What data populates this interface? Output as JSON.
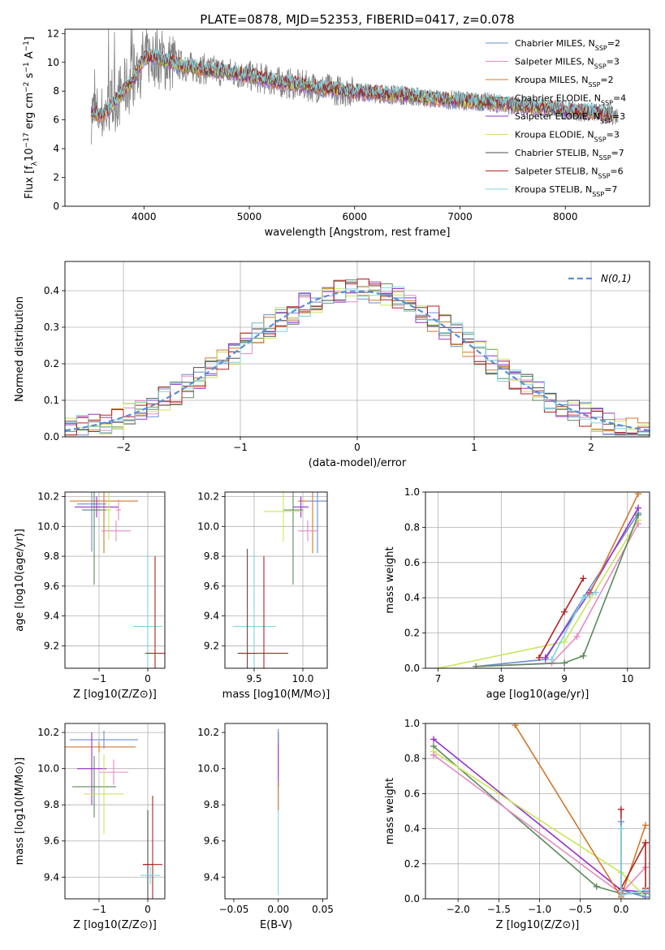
{
  "figure_title": "PLATE=0878, MJD=52353, FIBERID=0417, z=0.078",
  "chart_data": [
    {
      "id": "spectrum",
      "type": "line",
      "title": "PLATE=0878, MJD=52353, FIBERID=0417, z=0.078",
      "xlabel": "wavelength [Angstrom, rest frame]",
      "ylabel": "Flux [f_λ 10^-17 erg cm^-2 s^-1 A^-1]",
      "xlim": [
        3250,
        8800
      ],
      "ylim": [
        0,
        12.3
      ],
      "xticks": [
        4000,
        5000,
        6000,
        7000,
        8000
      ],
      "yticks": [
        0,
        2,
        4,
        6,
        8,
        10,
        12
      ],
      "grid": false,
      "legend_position": "top-right",
      "data_color": "#808080",
      "series": [
        {
          "name": "Chabrier MILES, N_SSP=2",
          "color": "#6a8dd6"
        },
        {
          "name": "Salpeter MILES, N_SSP=3",
          "color": "#e78ac3"
        },
        {
          "name": "Kroupa MILES, N_SSP=2",
          "color": "#d2782c"
        },
        {
          "name": "Chabrier ELODIE, N_SSP=4",
          "color": "#5c8a5c"
        },
        {
          "name": "Salpeter ELODIE, N_SSP=3",
          "color": "#9932cc"
        },
        {
          "name": "Kroupa ELODIE, N_SSP=3",
          "color": "#c8e65a"
        },
        {
          "name": "Chabrier STELIB, N_SSP=7",
          "color": "#4d4d4d"
        },
        {
          "name": "Salpeter STELIB, N_SSP=6",
          "color": "#b22222"
        },
        {
          "name": "Kroupa STELIB, N_SSP=7",
          "color": "#7fd3de"
        }
      ],
      "continuum": {
        "x": [
          3500,
          3600,
          3700,
          3800,
          3900,
          4000,
          4100,
          4200,
          4300,
          4400,
          4500,
          4700,
          4900,
          5100,
          5300,
          5500,
          5700,
          5900,
          6100,
          6300,
          6500,
          6700,
          6900,
          7100,
          7300,
          7500,
          7700,
          7900,
          8100,
          8300,
          8500
        ],
        "y": [
          6.5,
          6.3,
          7.0,
          8.0,
          8.8,
          10.3,
          10.4,
          10.1,
          9.9,
          9.7,
          9.6,
          9.4,
          9.2,
          8.9,
          8.6,
          8.4,
          8.2,
          8.0,
          7.9,
          7.8,
          7.7,
          7.5,
          7.4,
          7.3,
          7.2,
          7.0,
          6.9,
          6.8,
          6.6,
          6.5,
          6.3
        ]
      }
    },
    {
      "id": "residuals",
      "type": "bar",
      "xlabel": "(data-model)/error",
      "ylabel": "Normed distribution",
      "xlim": [
        -2.5,
        2.5
      ],
      "ylim": [
        0,
        0.48
      ],
      "xticks": [
        -2,
        -1,
        0,
        1,
        2
      ],
      "yticks": [
        0.0,
        0.1,
        0.2,
        0.3,
        0.4
      ],
      "grid": true,
      "legend_position": "top-right",
      "normal_curve": {
        "name": "N(0,1)",
        "color": "#5b8fd6",
        "mean": 0,
        "sigma": 1
      }
    },
    {
      "id": "age_vs_Z",
      "type": "scatter",
      "xlabel": "Z [log10(Z/Z⊙)]",
      "ylabel": "age [log10(age/yr)]",
      "xlim": [
        -1.7,
        0.35
      ],
      "ylim": [
        9.05,
        10.23
      ],
      "xticks": [
        -1,
        0
      ],
      "yticks": [
        9.2,
        9.4,
        9.6,
        9.8,
        10.0,
        10.2
      ],
      "grid": true,
      "points": [
        {
          "x": -0.9,
          "y": 10.17,
          "x_err": 0.7,
          "y_err": 0.35,
          "color": "#d2782c"
        },
        {
          "x": -1.15,
          "y": 10.15,
          "x_err": 0.3,
          "y_err": 0.32,
          "color": "#6a8dd6"
        },
        {
          "x": -1.05,
          "y": 10.13,
          "x_err": 0.45,
          "y_err": 0.07,
          "color": "#9932cc"
        },
        {
          "x": -1.1,
          "y": 10.11,
          "x_err": 0.25,
          "y_err": 0.5,
          "color": "#5c8a5c"
        },
        {
          "x": -0.6,
          "y": 10.11,
          "x_err": 0.05,
          "y_err": 0.07,
          "color": "#e78ac3"
        },
        {
          "x": -0.8,
          "y": 10.11,
          "x_err": 0.05,
          "y_err": 0.2,
          "color": "#c8e65a"
        },
        {
          "x": -0.65,
          "y": 9.97,
          "x_err": 0.3,
          "y_err": 0.07,
          "color": "#e78ac3"
        },
        {
          "x": 0.0,
          "y": 9.33,
          "x_err": 0.3,
          "y_err": 0.5,
          "color": "#7fd3de"
        },
        {
          "x": 0.15,
          "y": 9.15,
          "x_err": 0.2,
          "y_err": 0.65,
          "color": "#b22222"
        }
      ]
    },
    {
      "id": "age_vs_mass",
      "type": "scatter",
      "xlabel": "mass [log10(M/M⊙)]",
      "ylabel": "",
      "xlim": [
        9.2,
        10.25
      ],
      "ylim": [
        9.05,
        10.23
      ],
      "xticks": [
        9.5,
        10.0
      ],
      "yticks": [
        9.2,
        9.4,
        9.6,
        9.8,
        10.0,
        10.2
      ],
      "grid": true,
      "points": [
        {
          "x": 10.1,
          "y": 10.17,
          "x_err": 0.15,
          "y_err": 0.35,
          "color": "#d2782c"
        },
        {
          "x": 10.15,
          "y": 10.17,
          "x_err": 0.1,
          "y_err": 0.35,
          "color": "#6a8dd6"
        },
        {
          "x": 9.98,
          "y": 10.13,
          "x_err": 0.08,
          "y_err": 0.07,
          "color": "#9932cc"
        },
        {
          "x": 9.9,
          "y": 10.11,
          "x_err": 0.1,
          "y_err": 0.5,
          "color": "#5c8a5c"
        },
        {
          "x": 9.8,
          "y": 10.1,
          "x_err": 0.2,
          "y_err": 0.2,
          "color": "#c8e65a"
        },
        {
          "x": 10.05,
          "y": 9.97,
          "x_err": 0.1,
          "y_err": 0.07,
          "color": "#e78ac3"
        },
        {
          "x": 9.5,
          "y": 9.33,
          "x_err": 0.22,
          "y_err": 0.5,
          "color": "#7fd3de"
        },
        {
          "x": 9.43,
          "y": 9.15,
          "x_err": 0.1,
          "y_err": 0.7,
          "color": "#4d4d4d"
        },
        {
          "x": 9.6,
          "y": 9.15,
          "x_err": 0.25,
          "y_err": 0.65,
          "color": "#b22222"
        }
      ]
    },
    {
      "id": "massweight_vs_age",
      "type": "line",
      "xlabel": "age [log10(age/yr)]",
      "ylabel": "mass weight",
      "xlim": [
        6.8,
        10.35
      ],
      "ylim": [
        0,
        1.0
      ],
      "xticks": [
        7,
        8,
        9,
        10
      ],
      "yticks": [
        0.0,
        0.2,
        0.4,
        0.6,
        0.8,
        1.0
      ],
      "grid": true,
      "series": [
        {
          "color": "#c8e65a",
          "x": [
            7.0,
            9.0,
            10.17
          ],
          "y": [
            0.0,
            0.15,
            0.84
          ]
        },
        {
          "color": "#6a8dd6",
          "x": [
            7.6,
            8.7,
            9.3,
            10.17
          ],
          "y": [
            0.01,
            0.05,
            0.4,
            0.88
          ]
        },
        {
          "color": "#e78ac3",
          "x": [
            7.6,
            8.8,
            9.2,
            10.17
          ],
          "y": [
            0.01,
            0.03,
            0.18,
            0.82
          ]
        },
        {
          "color": "#5c8a5c",
          "x": [
            7.6,
            9.0,
            9.3,
            10.17
          ],
          "y": [
            0.01,
            0.03,
            0.07,
            0.87
          ]
        },
        {
          "color": "#9932cc",
          "x": [
            8.7,
            9.4,
            10.17
          ],
          "y": [
            0.06,
            0.43,
            0.91
          ]
        },
        {
          "color": "#b22222",
          "x": [
            8.6,
            9.0,
            9.3
          ],
          "y": [
            0.06,
            0.32,
            0.51
          ]
        },
        {
          "color": "#d2782c",
          "x": [
            9.4,
            10.17
          ],
          "y": [
            0.42,
            0.99
          ]
        },
        {
          "color": "#7fd3de",
          "x": [
            8.8,
            9.3,
            9.5
          ],
          "y": [
            0.05,
            0.4,
            0.43
          ]
        }
      ]
    },
    {
      "id": "mass_vs_Z",
      "type": "scatter",
      "xlabel": "Z [log10(Z/Z⊙)]",
      "ylabel": "mass [log10(M/M⊙)]",
      "xlim": [
        -1.7,
        0.35
      ],
      "ylim": [
        9.28,
        10.25
      ],
      "xticks": [
        -1,
        0
      ],
      "yticks": [
        9.4,
        9.6,
        9.8,
        10.0,
        10.2
      ],
      "grid": true,
      "points": [
        {
          "x": -0.9,
          "y": 10.16,
          "x_err": 0.7,
          "y_err": 0.05,
          "color": "#6a8dd6"
        },
        {
          "x": -1.0,
          "y": 10.12,
          "x_err": 0.75,
          "y_err": 0.03,
          "color": "#d2782c"
        },
        {
          "x": -1.15,
          "y": 10.0,
          "x_err": 0.3,
          "y_err": 0.2,
          "color": "#9932cc"
        },
        {
          "x": -0.7,
          "y": 9.98,
          "x_err": 0.3,
          "y_err": 0.07,
          "color": "#e78ac3"
        },
        {
          "x": -1.1,
          "y": 9.9,
          "x_err": 0.45,
          "y_err": 0.17,
          "color": "#5c8a5c"
        },
        {
          "x": -0.9,
          "y": 9.86,
          "x_err": 0.4,
          "y_err": 0.22,
          "color": "#c8e65a"
        },
        {
          "x": 0.0,
          "y": 9.47,
          "x_err": 0.1,
          "y_err": 0.3,
          "color": "#4d4d4d"
        },
        {
          "x": 0.1,
          "y": 9.47,
          "x_err": 0.2,
          "y_err": 0.38,
          "color": "#b22222"
        },
        {
          "x": 0.05,
          "y": 9.41,
          "x_err": 0.2,
          "y_err": 0.05,
          "color": "#7fd3de"
        }
      ]
    },
    {
      "id": "mass_vs_EBV",
      "type": "scatter",
      "xlabel": "E(B-V)",
      "ylabel": "",
      "xlim": [
        -0.06,
        0.055
      ],
      "ylim": [
        9.28,
        10.25
      ],
      "xticks": [
        -0.05,
        0.0,
        0.05
      ],
      "xtick_labels": [
        "−0.05",
        "0.00",
        "0.05"
      ],
      "yticks": [
        9.4,
        9.6,
        9.8,
        10.0,
        10.2
      ],
      "grid": false,
      "points": [
        {
          "x": 0.0,
          "y": 9.75,
          "x_err": 0.0,
          "y_err": 0.45,
          "color": "#7fd3de"
        },
        {
          "x": 0.0,
          "y": 10.05,
          "x_err": 0.0,
          "y_err": 0.15,
          "color": "#9932cc"
        },
        {
          "x": 0.0,
          "y": 9.85,
          "x_err": 0.0,
          "y_err": 0.08,
          "color": "#d2782c"
        },
        {
          "x": 0.0,
          "y": 10.18,
          "x_err": 0.0,
          "y_err": 0.04,
          "color": "#6a8dd6"
        }
      ]
    },
    {
      "id": "massweight_vs_Z",
      "type": "line",
      "xlabel": "Z [log10(Z/Z⊙)]",
      "ylabel": "mass weight",
      "xlim": [
        -2.4,
        0.35
      ],
      "ylim": [
        0,
        1.0
      ],
      "xticks": [
        -2.0,
        -1.5,
        -1.0,
        -0.5,
        0.0
      ],
      "yticks": [
        0.0,
        0.2,
        0.4,
        0.6,
        0.8,
        1.0
      ],
      "grid": true,
      "series": [
        {
          "color": "#9932cc",
          "x": [
            -2.3,
            0.0,
            0.3
          ],
          "y": [
            0.91,
            0.05,
            0.04
          ]
        },
        {
          "color": "#5c8a5c",
          "x": [
            -2.3,
            -0.3,
            0.0,
            0.3
          ],
          "y": [
            0.87,
            0.07,
            0.03,
            0.03
          ]
        },
        {
          "color": "#c8e65a",
          "x": [
            -2.3,
            0.0,
            0.3
          ],
          "y": [
            0.84,
            0.15,
            0.01
          ]
        },
        {
          "color": "#e78ac3",
          "x": [
            -2.3,
            0.0,
            0.3
          ],
          "y": [
            0.82,
            0.03,
            0.18
          ]
        },
        {
          "color": "#d2782c",
          "x": [
            -1.3,
            0.0,
            0.3
          ],
          "y": [
            0.99,
            0.01,
            0.42
          ]
        },
        {
          "color": "#b22222",
          "x": [
            0.0,
            0.0,
            0.3,
            0.3
          ],
          "y": [
            0.51,
            0.06,
            0.32,
            0.06
          ]
        },
        {
          "color": "#6a8dd6",
          "x": [
            0.0,
            0.0,
            0.3
          ],
          "y": [
            0.44,
            0.05,
            0.01
          ]
        },
        {
          "color": "#7fd3de",
          "x": [
            0.0,
            0.0,
            0.3
          ],
          "y": [
            0.4,
            0.02,
            0.05
          ]
        }
      ]
    }
  ]
}
